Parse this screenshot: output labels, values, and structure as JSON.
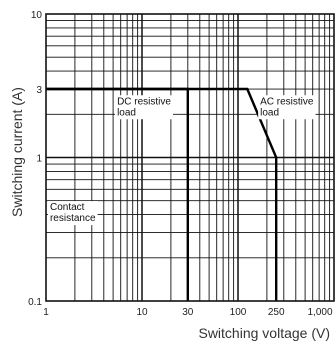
{
  "chart_data": {
    "type": "line",
    "xlabel": "Switching voltage (V)",
    "ylabel": "Switching current (A)",
    "x_scale": "log",
    "y_scale": "log",
    "xlim": [
      1,
      1000
    ],
    "ylim": [
      0.1,
      10
    ],
    "grid": true,
    "x_tick_labels": [
      {
        "value": 1,
        "label": "1"
      },
      {
        "value": 10,
        "label": "10"
      },
      {
        "value": 30,
        "label": "30"
      },
      {
        "value": 100,
        "label": "100"
      },
      {
        "value": 250,
        "label": "250"
      },
      {
        "value": 1000,
        "label": "1,000"
      }
    ],
    "y_tick_labels": [
      {
        "value": 10,
        "label": "10"
      },
      {
        "value": 3,
        "label": "3"
      },
      {
        "value": 1,
        "label": "1"
      },
      {
        "value": 0.1,
        "label": "0.1"
      }
    ],
    "series": [
      {
        "name": "DC resistive load",
        "x": [
          1,
          30,
          30
        ],
        "y": [
          3,
          3,
          0.1
        ]
      },
      {
        "name": "AC resistive load",
        "x": [
          1,
          125,
          250,
          250
        ],
        "y": [
          3,
          3,
          1,
          0.1
        ]
      }
    ],
    "annotations": [
      {
        "lines": [
          "DC resistive",
          "load"
        ],
        "x": 5.5,
        "y": 2.35
      },
      {
        "lines": [
          "AC resistive",
          "load"
        ],
        "x": 170,
        "y": 2.35
      },
      {
        "lines": [
          "Contact",
          "resistance"
        ],
        "x": 1.1,
        "y": 0.43
      }
    ]
  }
}
